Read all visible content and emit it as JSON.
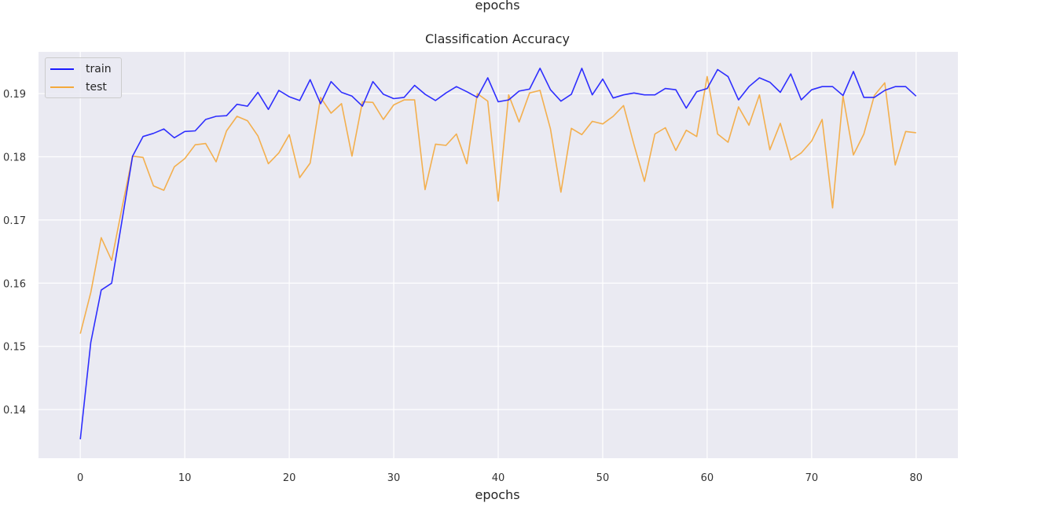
{
  "top_label": "epochs",
  "chart_data": {
    "type": "line",
    "title": "Classification Accuracy",
    "xlabel": "epochs",
    "ylabel": "",
    "xlim": [
      -4,
      84
    ],
    "ylim": [
      0.1323,
      0.1966
    ],
    "xticks": [
      0,
      10,
      20,
      30,
      40,
      50,
      60,
      70,
      80
    ],
    "xtick_labels": [
      "0",
      "10",
      "20",
      "30",
      "40",
      "50",
      "60",
      "70",
      "80"
    ],
    "yticks": [
      0.14,
      0.15,
      0.16,
      0.17,
      0.18,
      0.19
    ],
    "ytick_labels": [
      "0.14",
      "0.15",
      "0.16",
      "0.17",
      "0.18",
      "0.19"
    ],
    "grid": true,
    "legend_position": "top-left",
    "x": [
      0,
      1,
      2,
      3,
      4,
      5,
      6,
      7,
      8,
      9,
      10,
      11,
      12,
      13,
      14,
      15,
      16,
      17,
      18,
      19,
      20,
      21,
      22,
      23,
      24,
      25,
      26,
      27,
      28,
      29,
      30,
      31,
      32,
      33,
      34,
      35,
      36,
      37,
      38,
      39,
      40,
      41,
      42,
      43,
      44,
      45,
      46,
      47,
      48,
      49,
      50,
      51,
      52,
      53,
      54,
      55,
      56,
      57,
      58,
      59,
      60,
      61,
      62,
      63,
      64,
      65,
      66,
      67,
      68,
      69,
      70,
      71,
      72,
      73,
      74,
      75,
      76,
      77,
      78,
      79,
      80
    ],
    "series": [
      {
        "name": "train",
        "color": "#1a1aff",
        "values": [
          0.1353,
          0.1506,
          0.1589,
          0.16,
          0.17,
          0.1801,
          0.1832,
          0.1837,
          0.1844,
          0.183,
          0.184,
          0.1841,
          0.1859,
          0.1864,
          0.1865,
          0.1883,
          0.188,
          0.1902,
          0.1875,
          0.1905,
          0.1895,
          0.1889,
          0.1922,
          0.1884,
          0.1919,
          0.1902,
          0.1896,
          0.188,
          0.1919,
          0.1899,
          0.1892,
          0.1894,
          0.1913,
          0.1899,
          0.1889,
          0.1901,
          0.1911,
          0.1903,
          0.1894,
          0.1925,
          0.1887,
          0.189,
          0.1904,
          0.1907,
          0.194,
          0.1906,
          0.1888,
          0.1899,
          0.194,
          0.1898,
          0.1923,
          0.1893,
          0.1898,
          0.1901,
          0.1898,
          0.1898,
          0.1908,
          0.1906,
          0.1877,
          0.1903,
          0.1908,
          0.1938,
          0.1927,
          0.189,
          0.1911,
          0.1925,
          0.1918,
          0.1902,
          0.1931,
          0.189,
          0.1906,
          0.1911,
          0.1911,
          0.1897,
          0.1935,
          0.1894,
          0.1894,
          0.1905,
          0.1911,
          0.1911,
          0.1896
        ]
      },
      {
        "name": "test",
        "color": "#f4a93c",
        "values": [
          0.152,
          0.1585,
          0.1672,
          0.1636,
          0.172,
          0.1801,
          0.1799,
          0.1754,
          0.1747,
          0.1784,
          0.1797,
          0.1819,
          0.1821,
          0.1792,
          0.1841,
          0.1864,
          0.1857,
          0.1833,
          0.1789,
          0.1806,
          0.1835,
          0.1767,
          0.179,
          0.1894,
          0.1869,
          0.1884,
          0.1801,
          0.1887,
          0.1886,
          0.1859,
          0.1882,
          0.189,
          0.189,
          0.1748,
          0.182,
          0.1818,
          0.1836,
          0.1789,
          0.19,
          0.1888,
          0.173,
          0.1898,
          0.1855,
          0.1901,
          0.1905,
          0.1844,
          0.1744,
          0.1845,
          0.1835,
          0.1856,
          0.1852,
          0.1864,
          0.1881,
          0.1819,
          0.1761,
          0.1836,
          0.1846,
          0.181,
          0.1842,
          0.1832,
          0.1927,
          0.1836,
          0.1823,
          0.1879,
          0.185,
          0.1898,
          0.1811,
          0.1853,
          0.1795,
          0.1806,
          0.1825,
          0.1859,
          0.1719,
          0.1896,
          0.1803,
          0.1836,
          0.1897,
          0.1917,
          0.1787,
          0.184,
          0.1838
        ]
      }
    ]
  }
}
